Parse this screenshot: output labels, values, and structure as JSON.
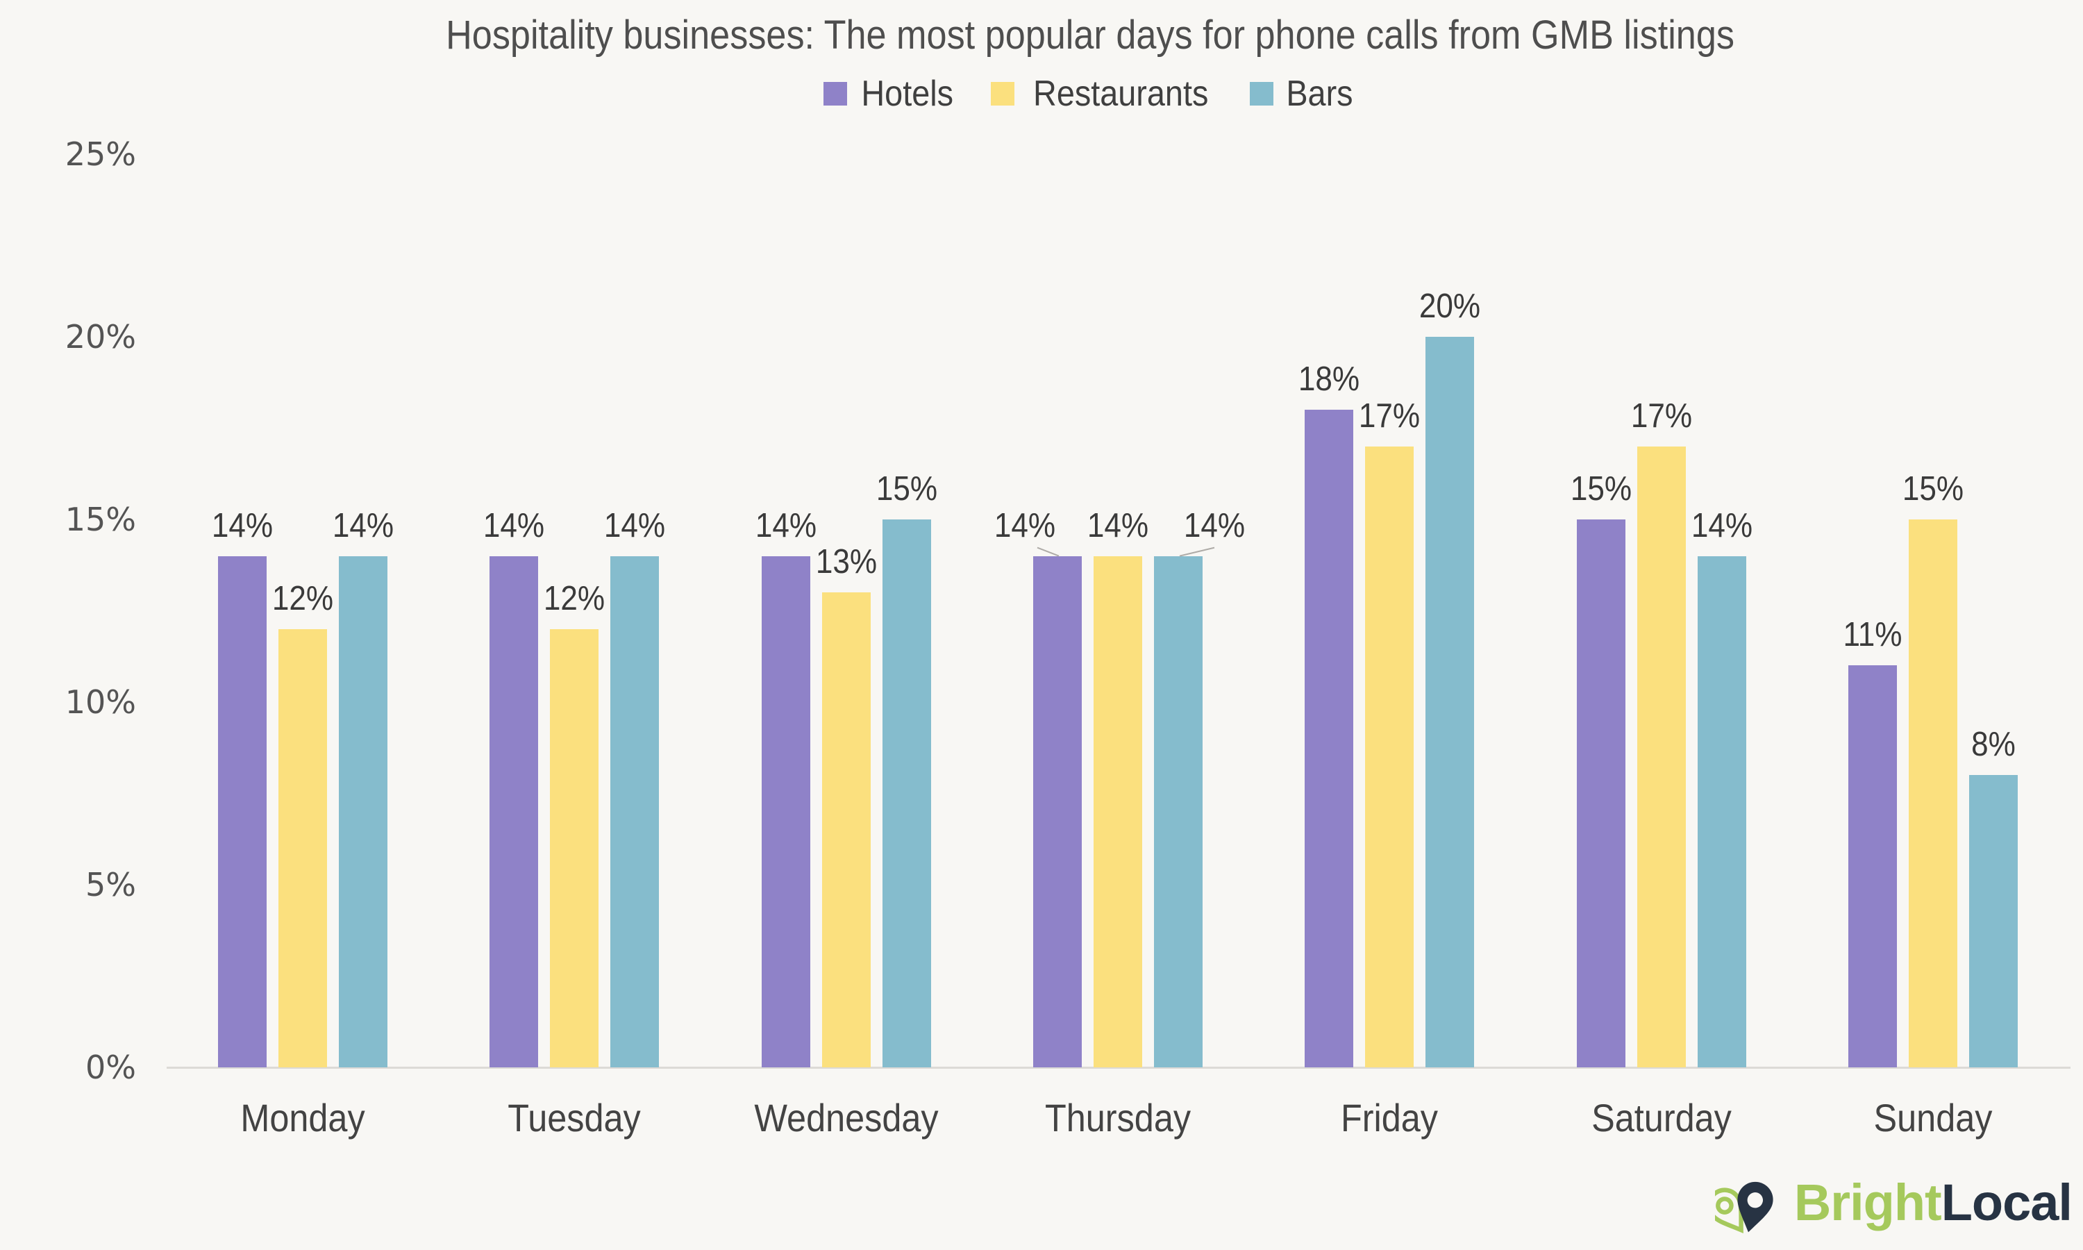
{
  "page": {
    "background_color": "#f8f7f4"
  },
  "chart_data": {
    "type": "bar",
    "title": "Hospitality businesses: The most popular days for phone calls from GMB listings",
    "categories": [
      "Monday",
      "Tuesday",
      "Wednesday",
      "Thursday",
      "Friday",
      "Saturday",
      "Sunday"
    ],
    "series": [
      {
        "name": "Hotels",
        "color": "#8f82c8",
        "values": [
          14,
          14,
          14,
          14,
          18,
          15,
          11
        ]
      },
      {
        "name": "Restaurants",
        "color": "#fbe07e",
        "values": [
          12,
          12,
          13,
          14,
          17,
          17,
          15
        ]
      },
      {
        "name": "Bars",
        "color": "#85bccd",
        "values": [
          14,
          14,
          15,
          14,
          20,
          14,
          8
        ]
      }
    ],
    "data_label_format": "{v}%",
    "y_axis": {
      "min": 0,
      "max": 25,
      "ticks": [
        "0%",
        "5%",
        "10%",
        "15%",
        "20%",
        "25%"
      ]
    },
    "xlabel": "",
    "ylabel": "",
    "grid": "off",
    "legend_position": "top",
    "label_callouts": {
      "Thursday": {
        "Hotels": -47,
        "Bars": 52
      }
    },
    "callout_line_color": "#aeaba7",
    "axis_line_color": "#dcdad6",
    "text_colors": {
      "title": "#4e4e4e",
      "data_label": "#3a3a3a",
      "axis_label": "#434343",
      "tick_label": "#545454"
    }
  },
  "branding": {
    "logo_text_primary": "Bright",
    "logo_text_secondary": "Local",
    "primary_color": "#a5c95c",
    "secondary_color": "#273343",
    "icon": "map-pin-heart-icon"
  }
}
